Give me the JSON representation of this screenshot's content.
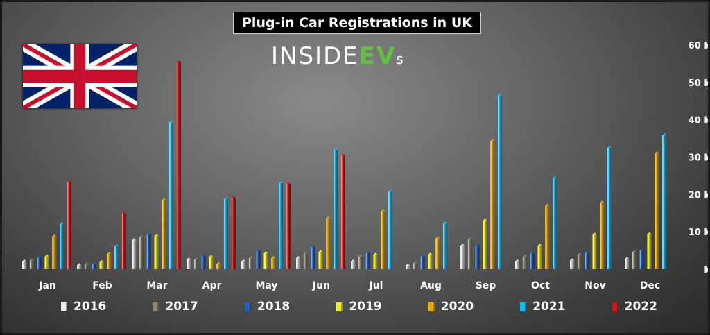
{
  "logo": {
    "white_text": "INSIDE",
    "green_text": "EV",
    "small_text": "s"
  },
  "flag_icon": "uk-flag-icon",
  "chart_data": {
    "type": "bar",
    "title": "Plug-in Car Registrations in UK",
    "categories": [
      "Jan",
      "Feb",
      "Mar",
      "Apr",
      "May",
      "Jun",
      "Jul",
      "Aug",
      "Sep",
      "Oct",
      "Nov",
      "Dec"
    ],
    "ylim": [
      0,
      60
    ],
    "yticks": [
      {
        "value": 0,
        "label": "k"
      },
      {
        "value": 10,
        "label": "10 k"
      },
      {
        "value": 20,
        "label": "20 k"
      },
      {
        "value": 30,
        "label": "30 k"
      },
      {
        "value": 40,
        "label": "40 k"
      },
      {
        "value": 50,
        "label": "50 k"
      },
      {
        "value": 60,
        "label": "60 k"
      }
    ],
    "y_axis_position": "right",
    "grid": false,
    "legend_position": "bottom",
    "series": [
      {
        "name": "2016",
        "color": "#e8e8e8",
        "values": [
          2.1,
          1.1,
          7.8,
          2.6,
          2.1,
          3.0,
          2.1,
          1.0,
          6.3,
          2.1,
          2.4,
          2.8
        ]
      },
      {
        "name": "2017",
        "color": "#8c8670",
        "values": [
          2.4,
          1.3,
          8.6,
          2.6,
          3.0,
          4.2,
          3.4,
          1.6,
          8.0,
          3.4,
          3.9,
          4.6
        ]
      },
      {
        "name": "2018",
        "color": "#1f5fbf",
        "values": [
          3.1,
          1.4,
          9.3,
          3.6,
          4.9,
          6.0,
          4.3,
          3.5,
          6.5,
          4.3,
          4.4,
          5.0
        ]
      },
      {
        "name": "2019",
        "color": "#f4ef1a",
        "values": [
          3.4,
          1.9,
          8.9,
          3.3,
          4.3,
          4.6,
          3.9,
          3.9,
          13.0,
          6.3,
          9.3,
          9.4
        ]
      },
      {
        "name": "2020",
        "color": "#e7ad0e",
        "values": [
          8.8,
          4.1,
          18.5,
          1.4,
          3.0,
          13.6,
          15.5,
          8.3,
          34.3,
          17.0,
          17.8,
          31.0
        ]
      },
      {
        "name": "2021",
        "color": "#1fb6e8",
        "values": [
          12.1,
          6.2,
          39.3,
          18.8,
          23.0,
          32.0,
          20.8,
          12.3,
          46.6,
          24.4,
          32.5,
          35.9
        ]
      },
      {
        "name": "2022",
        "color": "#d61414",
        "values": [
          23.4,
          14.9,
          55.5,
          19.1,
          22.8,
          30.4,
          null,
          null,
          null,
          null,
          null,
          null
        ]
      }
    ]
  }
}
